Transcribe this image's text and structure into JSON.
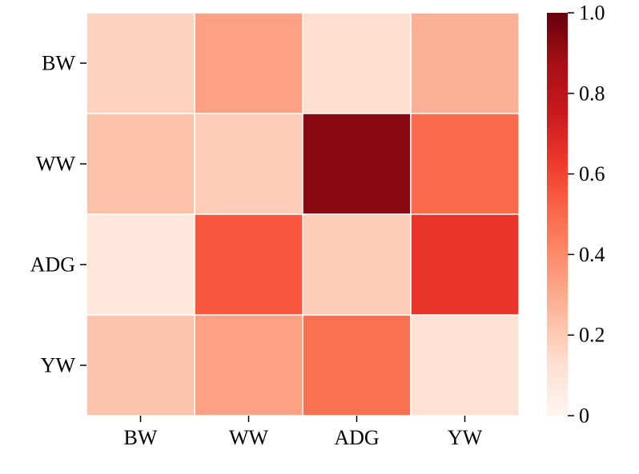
{
  "chart_data": {
    "type": "heatmap",
    "title": "",
    "xlabel": "",
    "ylabel": "",
    "x_categories": [
      "BW",
      "WW",
      "ADG",
      "YW"
    ],
    "y_categories": [
      "BW",
      "WW",
      "ADG",
      "YW"
    ],
    "values": [
      [
        0.17,
        0.33,
        0.13,
        0.28
      ],
      [
        0.23,
        0.19,
        0.93,
        0.5
      ],
      [
        0.09,
        0.55,
        0.19,
        0.65
      ],
      [
        0.22,
        0.33,
        0.48,
        0.12
      ]
    ],
    "colorbar": {
      "min": 0,
      "max": 1.0,
      "ticks": [
        0,
        0.2,
        0.4,
        0.6,
        0.8,
        1.0
      ],
      "tick_labels": [
        "0",
        "0.2",
        "0.4",
        "0.6",
        "0.8",
        "1.0"
      ],
      "colormap": "Reds",
      "stops": [
        "#fff5f0",
        "#fee0d2",
        "#fcbba1",
        "#fc9272",
        "#fb6a4a",
        "#ef3b2c",
        "#cb181d",
        "#a50f15",
        "#67000d"
      ]
    },
    "cell_border_color": "#ffffff",
    "grid": false,
    "legend": "right"
  }
}
